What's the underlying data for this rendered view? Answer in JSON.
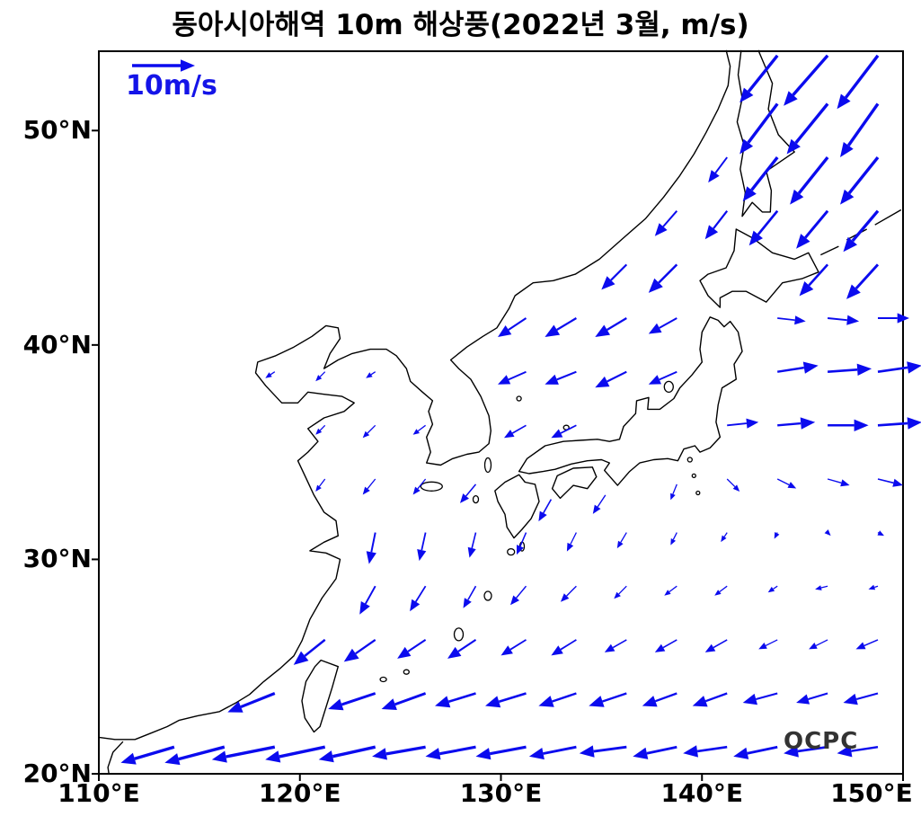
{
  "title": "동아시아해역 10m 해상풍(2022년 3월, m/s)",
  "legend": {
    "label": "10m/s",
    "speed_ms": 10
  },
  "watermark": {
    "label": "OCPC"
  },
  "colors": {
    "arrow": "#0b0bee",
    "coast": "#000000",
    "legend_text": "#1414e8",
    "text": "#000000"
  },
  "axes": {
    "x_ticks": [
      {
        "label": "110°E",
        "lon": 110
      },
      {
        "label": "120°E",
        "lon": 120
      },
      {
        "label": "130°E",
        "lon": 130
      },
      {
        "label": "140°E",
        "lon": 140
      },
      {
        "label": "150°E",
        "lon": 150
      }
    ],
    "y_ticks": [
      {
        "label": "20°N",
        "lat": 20
      },
      {
        "label": "30°N",
        "lat": 30
      },
      {
        "label": "40°N",
        "lat": 40
      },
      {
        "label": "50°N",
        "lat": 50
      }
    ]
  },
  "chart_data": {
    "type": "quiver",
    "title": "동아시아해역 10m 해상풍(2022년 3월, m/s)",
    "units": "m/s",
    "lon_range": [
      110,
      150
    ],
    "lat_range": [
      20,
      53.7
    ],
    "grid": false,
    "reference_arrow_ms": 10,
    "vectors_format": [
      "lon",
      "lat",
      "u_ms",
      "v_ms"
    ],
    "vectors": [
      [
        113.75,
        21.25,
        -8.5,
        -2.5
      ],
      [
        116.25,
        21.25,
        -9.5,
        -2.5
      ],
      [
        118.75,
        21.25,
        -10,
        -2
      ],
      [
        121.25,
        21.25,
        -9.5,
        -2
      ],
      [
        123.75,
        21.25,
        -9,
        -2
      ],
      [
        126.25,
        21.25,
        -8.5,
        -1.5
      ],
      [
        128.75,
        21.25,
        -8,
        -1.5
      ],
      [
        131.25,
        21.25,
        -8,
        -1.5
      ],
      [
        133.75,
        21.25,
        -7.5,
        -1.5
      ],
      [
        136.25,
        21.25,
        -7.5,
        -1
      ],
      [
        138.75,
        21.25,
        -7,
        -1.5
      ],
      [
        141.25,
        21.25,
        -7,
        -1
      ],
      [
        143.75,
        21.25,
        -7,
        -1.5
      ],
      [
        146.25,
        21.25,
        -7,
        -1
      ],
      [
        148.75,
        21.25,
        -6.5,
        -1
      ],
      [
        118.75,
        23.75,
        -7.5,
        -3
      ],
      [
        123.75,
        23.75,
        -7.5,
        -2.5
      ],
      [
        126.25,
        23.75,
        -7,
        -2.5
      ],
      [
        128.75,
        23.75,
        -6.5,
        -2
      ],
      [
        131.25,
        23.75,
        -6.5,
        -2
      ],
      [
        133.75,
        23.75,
        -6,
        -2
      ],
      [
        136.25,
        23.75,
        -6,
        -2
      ],
      [
        138.75,
        23.75,
        -5.5,
        -2
      ],
      [
        141.25,
        23.75,
        -5.5,
        -2
      ],
      [
        143.75,
        23.75,
        -5.5,
        -1.5
      ],
      [
        146.25,
        23.75,
        -5,
        -1.5
      ],
      [
        148.75,
        23.75,
        -5.5,
        -1.5
      ],
      [
        121.25,
        26.25,
        -5,
        -4
      ],
      [
        123.75,
        26.25,
        -5,
        -3.5
      ],
      [
        126.25,
        26.25,
        -4.5,
        -3
      ],
      [
        128.75,
        26.25,
        -4.5,
        -3
      ],
      [
        131.25,
        26.25,
        -4,
        -2.5
      ],
      [
        133.75,
        26.25,
        -4,
        -2.5
      ],
      [
        136.25,
        26.25,
        -3.5,
        -2
      ],
      [
        138.75,
        26.25,
        -3.5,
        -2
      ],
      [
        141.25,
        26.25,
        -3.5,
        -2
      ],
      [
        143.75,
        26.25,
        -3,
        -1.5
      ],
      [
        146.25,
        26.25,
        -3,
        -1.5
      ],
      [
        148.75,
        26.25,
        -3.5,
        -1.5
      ],
      [
        123.75,
        28.75,
        -2.5,
        -4.5
      ],
      [
        126.25,
        28.75,
        -2.5,
        -4
      ],
      [
        128.75,
        28.75,
        -2,
        -3.5
      ],
      [
        131.25,
        28.75,
        -2.5,
        -3
      ],
      [
        133.75,
        28.75,
        -2.5,
        -2.5
      ],
      [
        136.25,
        28.75,
        -2,
        -2
      ],
      [
        138.75,
        28.75,
        -2,
        -1.5
      ],
      [
        141.25,
        28.75,
        -2,
        -1.5
      ],
      [
        143.75,
        28.75,
        -1.5,
        -1
      ],
      [
        146.25,
        28.75,
        -2,
        -0.5
      ],
      [
        148.75,
        28.75,
        -1.5,
        -0.5
      ],
      [
        123.75,
        31.25,
        -1,
        -5
      ],
      [
        126.25,
        31.25,
        -1,
        -4.5
      ],
      [
        128.75,
        31.25,
        -1,
        -4
      ],
      [
        131.25,
        31.25,
        -1.5,
        -3.5
      ],
      [
        133.75,
        31.25,
        -1.5,
        -3
      ],
      [
        136.25,
        31.25,
        -1.5,
        -2.5
      ],
      [
        138.75,
        31.25,
        -1,
        -2
      ],
      [
        141.25,
        31.25,
        -1,
        -1.5
      ],
      [
        143.75,
        31.25,
        -0.5,
        -1
      ],
      [
        146.25,
        31.25,
        0.5,
        -0.5
      ],
      [
        148.75,
        31.25,
        1,
        -0.5
      ],
      [
        121.25,
        33.75,
        -1.5,
        -2
      ],
      [
        123.75,
        33.75,
        -2,
        -2.5
      ],
      [
        126.25,
        33.75,
        -2,
        -2.5
      ],
      [
        128.75,
        33.5,
        -2.5,
        -3
      ],
      [
        132.5,
        32.8,
        -2,
        -3.5
      ],
      [
        135.2,
        33,
        -2,
        -3
      ],
      [
        138.75,
        33.5,
        -1,
        -2.5
      ],
      [
        141.25,
        33.75,
        2,
        -2
      ],
      [
        143.75,
        33.75,
        3,
        -1.5
      ],
      [
        146.25,
        33.75,
        3.5,
        -1
      ],
      [
        148.75,
        33.75,
        4,
        -1
      ],
      [
        121.25,
        36.25,
        -1.5,
        -1.5
      ],
      [
        123.75,
        36.25,
        -2,
        -2
      ],
      [
        126.25,
        36.25,
        -2,
        -1.5
      ],
      [
        131.25,
        36.25,
        -3.5,
        -2
      ],
      [
        133.75,
        36.25,
        -4,
        -2
      ],
      [
        141.25,
        36.25,
        5,
        0.5
      ],
      [
        143.75,
        36.25,
        6,
        0.5
      ],
      [
        146.25,
        36.25,
        6.5,
        0
      ],
      [
        148.75,
        36.25,
        7,
        0.5
      ],
      [
        118.75,
        38.75,
        -1.5,
        -1
      ],
      [
        121.25,
        38.75,
        -1.5,
        -1.5
      ],
      [
        123.75,
        38.75,
        -1.5,
        -1
      ],
      [
        131.25,
        38.75,
        -4.5,
        -2
      ],
      [
        133.75,
        38.75,
        -5,
        -2
      ],
      [
        136.25,
        38.75,
        -5,
        -2.5
      ],
      [
        138.75,
        38.75,
        -4.5,
        -2
      ],
      [
        143.75,
        38.75,
        6.5,
        1
      ],
      [
        146.25,
        38.75,
        7,
        0.5
      ],
      [
        148.75,
        38.75,
        7,
        1
      ],
      [
        131.25,
        41.25,
        -4.5,
        -3
      ],
      [
        133.75,
        41.25,
        -5,
        -3
      ],
      [
        136.25,
        41.25,
        -5,
        -3
      ],
      [
        138.75,
        41.25,
        -4.5,
        -2.5
      ],
      [
        143.75,
        41.25,
        4.5,
        -0.5
      ],
      [
        146.25,
        41.25,
        5,
        -0.5
      ],
      [
        148.75,
        41.25,
        5,
        0
      ],
      [
        136.25,
        43.75,
        -4,
        -4
      ],
      [
        138.75,
        43.75,
        -4.5,
        -4.5
      ],
      [
        146.25,
        43.75,
        -4.5,
        -5
      ],
      [
        148.75,
        43.75,
        -5,
        -5.5
      ],
      [
        138.75,
        46.25,
        -3.5,
        -4
      ],
      [
        141.25,
        46.25,
        -3.5,
        -4.5
      ],
      [
        143.75,
        46.25,
        -4.5,
        -5.5
      ],
      [
        146.25,
        46.25,
        -5,
        -6
      ],
      [
        148.75,
        46.25,
        -5.5,
        -6.5
      ],
      [
        141.25,
        48.75,
        -3,
        -4
      ],
      [
        143.75,
        48.75,
        -5.5,
        -7
      ],
      [
        146.25,
        48.75,
        -6,
        -7.5
      ],
      [
        148.75,
        48.75,
        -6,
        -7.5
      ],
      [
        143.75,
        51.25,
        -6,
        -8
      ],
      [
        146.25,
        51.25,
        -6.5,
        -8
      ],
      [
        148.75,
        51.25,
        -6,
        -8.5
      ],
      [
        143.75,
        53.5,
        -6,
        -7.5
      ],
      [
        146.25,
        53.5,
        -7,
        -8
      ],
      [
        148.75,
        53.5,
        -6.5,
        -8.5
      ]
    ]
  }
}
